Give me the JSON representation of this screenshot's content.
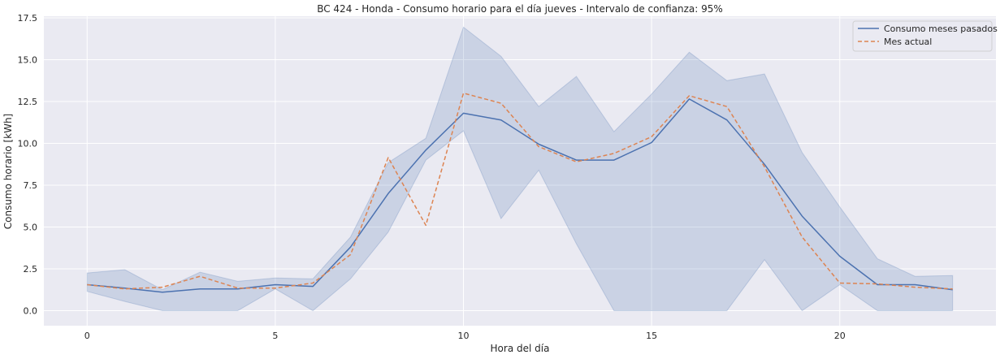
{
  "chart_data": {
    "type": "line",
    "title": "BC 424 - Honda - Consumo horario para el día jueves - Intervalo de confianza: 95%",
    "xlabel": "Hora del día",
    "ylabel": "Consumo horario [kWh]",
    "xlim": [
      -1.15,
      24.15
    ],
    "ylim": [
      -0.9,
      17.6
    ],
    "xticks": [
      0,
      5,
      10,
      15,
      20
    ],
    "xtick_labels": [
      "0",
      "5",
      "10",
      "15",
      "20"
    ],
    "yticks": [
      0,
      2.5,
      5,
      7.5,
      10,
      12.5,
      15,
      17.5
    ],
    "ytick_labels": [
      "0.0",
      "2.5",
      "5.0",
      "7.5",
      "10.0",
      "12.5",
      "15.0",
      "17.5"
    ],
    "grid": true,
    "legend_position": "top-right",
    "x": [
      0,
      1,
      2,
      3,
      4,
      5,
      6,
      7,
      8,
      9,
      10,
      11,
      12,
      13,
      14,
      15,
      16,
      17,
      18,
      19,
      20,
      21,
      22,
      23
    ],
    "series": [
      {
        "name": "Consumo meses pasados",
        "style": "solid",
        "color": "#4c72b0",
        "values": [
          1.55,
          1.35,
          1.1,
          1.3,
          1.3,
          1.55,
          1.45,
          3.8,
          7.0,
          9.6,
          11.8,
          11.4,
          9.95,
          9.0,
          9.0,
          10.05,
          12.65,
          11.4,
          8.75,
          5.65,
          3.25,
          1.55,
          1.55,
          1.25
        ],
        "ci_lower": [
          1.15,
          0.55,
          0.0,
          0.0,
          0.0,
          1.3,
          0.0,
          1.9,
          4.7,
          9.0,
          10.75,
          5.5,
          8.4,
          4.0,
          0.0,
          0.0,
          0.0,
          0.0,
          3.05,
          0.0,
          1.55,
          0.0,
          0.0,
          0.0
        ],
        "ci_upper": [
          2.25,
          2.45,
          1.25,
          2.3,
          1.75,
          1.95,
          1.9,
          4.4,
          8.85,
          10.3,
          16.95,
          15.2,
          12.2,
          14.0,
          10.7,
          12.95,
          15.45,
          13.75,
          14.15,
          9.45,
          6.2,
          3.1,
          2.05,
          2.1
        ]
      },
      {
        "name": "Mes actual",
        "style": "dashed",
        "color": "#dd8452",
        "values": [
          1.55,
          1.3,
          1.4,
          2.05,
          1.35,
          1.35,
          1.65,
          3.35,
          9.15,
          5.1,
          13.0,
          12.4,
          9.8,
          8.9,
          9.4,
          10.4,
          12.85,
          12.2,
          8.6,
          4.4,
          1.65,
          1.6,
          1.4,
          1.3
        ]
      }
    ]
  }
}
